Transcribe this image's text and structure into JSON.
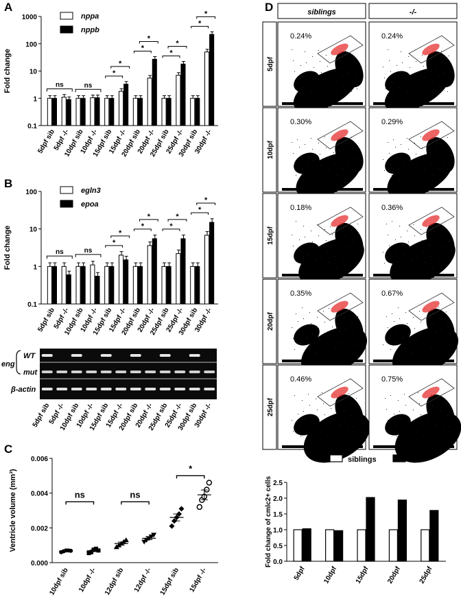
{
  "panels": {
    "A": "A",
    "B": "B",
    "C": "C",
    "D": "D"
  },
  "chart_data": [
    {
      "id": "A",
      "type": "bar",
      "ylabel": "Fold change",
      "yscale": "log",
      "ylim": [
        0.1,
        1000
      ],
      "yticks": [
        "0.1",
        "1",
        "10",
        "100",
        "1000"
      ],
      "categories": [
        "5dpf sib",
        "5dpf -/-",
        "10dpf sib",
        "10dpf -/-",
        "15dpf sib",
        "15dpf -/-",
        "20dpf sib",
        "20dpf -/-",
        "25dpf sib",
        "25dpf -/-",
        "30dpf sib",
        "30dpf -/-"
      ],
      "series": [
        {
          "name": "nppa",
          "fill": "#ffffff",
          "values": [
            1.0,
            1.1,
            1.0,
            1.05,
            1.0,
            1.8,
            1.0,
            5.5,
            1.0,
            7.0,
            1.0,
            50
          ]
        },
        {
          "name": "nppb",
          "fill": "#000000",
          "values": [
            1.0,
            0.9,
            1.0,
            1.05,
            1.0,
            3.3,
            1.0,
            27,
            1.0,
            18,
            1.0,
            220
          ]
        }
      ],
      "significance": [
        "ns",
        "ns",
        "*",
        "*",
        "*",
        "*",
        "*",
        "*",
        "*",
        "*"
      ]
    },
    {
      "id": "B",
      "type": "bar",
      "ylabel": "Fold change",
      "yscale": "log",
      "ylim": [
        0.1,
        100
      ],
      "yticks": [
        "0.1",
        "1",
        "10",
        "100"
      ],
      "categories": [
        "5dpf sib",
        "5dpf -/-",
        "10dpf sib",
        "10dpf -/-",
        "15dpf sib",
        "15dpf -/-",
        "20dpf sib",
        "20dpf -/-",
        "25dpf sib",
        "25dpf -/-",
        "30dpf sib",
        "30dpf -/-"
      ],
      "series": [
        {
          "name": "egln3",
          "fill": "#ffffff",
          "values": [
            1.0,
            1.0,
            1.0,
            1.1,
            1.0,
            2.0,
            1.0,
            3.6,
            1.0,
            2.2,
            1.0,
            6.8
          ]
        },
        {
          "name": "epoa",
          "fill": "#000000",
          "values": [
            1.0,
            0.6,
            1.0,
            0.55,
            1.0,
            1.5,
            1.0,
            5.5,
            1.0,
            5.5,
            1.0,
            15
          ]
        }
      ],
      "significance": [
        "ns",
        "ns",
        "*",
        "*",
        "*",
        "*",
        "*",
        "*",
        "*",
        "*"
      ]
    },
    {
      "id": "C",
      "type": "scatter",
      "ylabel": "Ventricle volume (mm³)",
      "ylim": [
        0,
        0.006
      ],
      "yticks": [
        "0.000",
        "0.002",
        "0.004",
        "0.006"
      ],
      "categories": [
        "10dpf sib",
        "10dpf -/-",
        "12dpf sib",
        "12dpf -/-",
        "15dpf sib",
        "15dpf -/-"
      ],
      "groups": [
        {
          "marker": "circle-filled",
          "values": [
            0.0006,
            0.00065,
            0.0007,
            0.0007,
            0.00068
          ],
          "mean": 0.00066
        },
        {
          "marker": "square-filled",
          "values": [
            0.00055,
            0.0006,
            0.00075,
            0.0008,
            0.0007
          ],
          "mean": 0.00068
        },
        {
          "marker": "triangle-up-filled",
          "values": [
            0.0009,
            0.001,
            0.0011,
            0.0012,
            0.0013
          ],
          "mean": 0.0011
        },
        {
          "marker": "triangle-down-filled",
          "values": [
            0.0012,
            0.0013,
            0.0014,
            0.0015,
            0.0016
          ],
          "mean": 0.0014
        },
        {
          "marker": "diamond-filled",
          "values": [
            0.0021,
            0.0024,
            0.0026,
            0.0028,
            0.0031
          ],
          "mean": 0.0026
        },
        {
          "marker": "circle-open",
          "values": [
            0.0032,
            0.0036,
            0.0038,
            0.0042,
            0.0046
          ],
          "mean": 0.0039
        }
      ],
      "significance": [
        "ns",
        "ns",
        "*"
      ]
    },
    {
      "id": "D",
      "type": "bar",
      "ylabel": "Fold change of cmlc2+ cells",
      "ylim": [
        0,
        2.5
      ],
      "yticks": [
        "0.0",
        "0.5",
        "1.0",
        "1.5",
        "2.0",
        "2.5"
      ],
      "categories": [
        "5dpf",
        "10dpf",
        "15dpf",
        "20dpf",
        "25dpf"
      ],
      "series": [
        {
          "name": "siblings",
          "fill": "#ffffff",
          "values": [
            1.0,
            1.0,
            1.0,
            1.0,
            1.0
          ]
        },
        {
          "name": "-/-",
          "fill": "#000000",
          "values": [
            1.03,
            0.97,
            2.02,
            1.94,
            1.61
          ]
        }
      ]
    }
  ],
  "gel": {
    "gene_label": "eng",
    "rows": [
      "WT",
      "mut",
      "β-actin"
    ],
    "lanes": [
      "5dpf sib",
      "5dpf -/-",
      "10dpf sib",
      "10dpf -/-",
      "15dpf sib",
      "15dpf -/-",
      "20dpf sib",
      "20dpf -/-",
      "25dpf sib",
      "25dpf -/-",
      "30dpf sib",
      "30dpf -/-"
    ],
    "wt_band": [
      1,
      0,
      1,
      0,
      1,
      0,
      1,
      0,
      1,
      0,
      1,
      0
    ]
  },
  "facs": {
    "col_headers": [
      "siblings",
      "-/-"
    ],
    "row_labels": [
      "5dpf",
      "10dpf",
      "15dpf",
      "20dpf",
      "25dpf"
    ],
    "percentages": [
      [
        "0.24%",
        "0.24%"
      ],
      [
        "0.30%",
        "0.29%"
      ],
      [
        "0.18%",
        "0.36%"
      ],
      [
        "0.35%",
        "0.67%"
      ],
      [
        "0.46%",
        "0.75%"
      ]
    ]
  }
}
